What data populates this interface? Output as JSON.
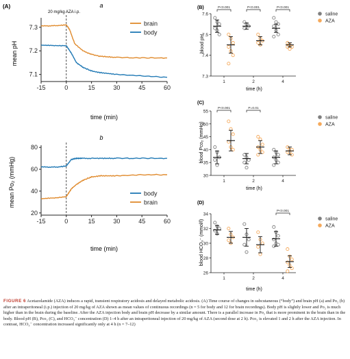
{
  "colors": {
    "brain": "#E08A2C",
    "body": "#1F78B4",
    "saline_face": "#7f7f7f",
    "aza_face": "#F5A95B",
    "sig": "#000000"
  },
  "panels": {
    "A": {
      "label": "(A)",
      "annotation": "20 mg/kg AZA i.p."
    },
    "B": {
      "label": "(B)"
    },
    "C": {
      "label": "(C)"
    },
    "D": {
      "label": "(D)"
    }
  },
  "chart_data": [
    {
      "id": "Aa",
      "type": "line",
      "title": "a",
      "xlabel": "time (min)",
      "ylabel": "mean pH",
      "xlim": [
        -15,
        60
      ],
      "ylim": [
        7.07,
        7.34
      ],
      "xticks": [
        -15,
        0,
        15,
        30,
        45,
        60
      ],
      "yticks": [
        7.1,
        7.2,
        7.3
      ],
      "legend": "top-right",
      "series": [
        {
          "name": "brain",
          "x": [
            -15,
            -5,
            0,
            2,
            5,
            10,
            15,
            20,
            30,
            45,
            60
          ],
          "y": [
            7.305,
            7.307,
            7.31,
            7.29,
            7.23,
            7.2,
            7.185,
            7.177,
            7.172,
            7.17,
            7.17
          ]
        },
        {
          "name": "body",
          "x": [
            -15,
            -5,
            0,
            3,
            6,
            10,
            15,
            20,
            30,
            45,
            60
          ],
          "y": [
            7.224,
            7.222,
            7.222,
            7.19,
            7.15,
            7.13,
            7.115,
            7.108,
            7.1,
            7.094,
            7.088
          ]
        }
      ]
    },
    {
      "id": "Ab",
      "type": "line",
      "title": "b",
      "xlabel": "time (min)",
      "ylabel": "mean Po₂ (mmHg)",
      "xlim": [
        -15,
        60
      ],
      "ylim": [
        18,
        82
      ],
      "xticks": [
        -15,
        0,
        15,
        30,
        45,
        60
      ],
      "yticks": [
        20,
        40,
        60,
        80
      ],
      "legend": "bottom-right",
      "series": [
        {
          "name": "body",
          "x": [
            -15,
            -5,
            0,
            3,
            6,
            10,
            20,
            30,
            45,
            60
          ],
          "y": [
            62,
            62,
            63,
            69,
            70,
            70,
            70,
            70,
            70,
            70
          ]
        },
        {
          "name": "brain",
          "x": [
            -15,
            -5,
            0,
            3,
            6,
            10,
            15,
            20,
            30,
            45,
            60
          ],
          "y": [
            33,
            34,
            35,
            42,
            46,
            50,
            53,
            54,
            54,
            55,
            55
          ]
        }
      ]
    },
    {
      "id": "B",
      "type": "scatter",
      "ylabel": "blood pH",
      "xlabel": "time (h)",
      "categories": [
        "1",
        "2",
        "4"
      ],
      "ylim": [
        7.3,
        7.6
      ],
      "yticks": [
        7.3,
        7.4,
        7.5,
        7.6
      ],
      "legend": "top-right",
      "series": [
        {
          "name": "saline",
          "mean": [
            7.54,
            7.54,
            7.53
          ],
          "sd": [
            0.03,
            0.015,
            0.02
          ],
          "points": [
            [
              7.58,
              7.56,
              7.55,
              7.53,
              7.52,
              7.5
            ],
            [
              7.56,
              7.55,
              7.54,
              7.53
            ],
            [
              7.58,
              7.56,
              7.55,
              7.54,
              7.52,
              7.5,
              7.49
            ]
          ]
        },
        {
          "name": "AZA",
          "mean": [
            7.45,
            7.47,
            7.45
          ],
          "sd": [
            0.04,
            0.02,
            0.01
          ],
          "points": [
            [
              7.5,
              7.48,
              7.46,
              7.44,
              7.42,
              7.4,
              7.36
            ],
            [
              7.5,
              7.48,
              7.47,
              7.46,
              7.45
            ],
            [
              7.46,
              7.45,
              7.44,
              7.44,
              7.43
            ]
          ]
        }
      ],
      "significance": [
        {
          "group": 0,
          "label": "P<0.001"
        },
        {
          "group": 1,
          "label": "P<0.001"
        },
        {
          "group": 2,
          "label": "P<0.001"
        }
      ]
    },
    {
      "id": "C",
      "type": "scatter",
      "ylabel": "blood Pco₂ (mmHg)",
      "xlabel": "time (h)",
      "categories": [
        "1",
        "2",
        "4"
      ],
      "ylim": [
        30,
        55
      ],
      "yticks": [
        30,
        35,
        40,
        45,
        50,
        55
      ],
      "legend": "top-right",
      "series": [
        {
          "name": "saline",
          "mean": [
            37,
            36.5,
            37
          ],
          "sd": [
            2.5,
            2,
            2.5
          ],
          "points": [
            [
              41,
              39,
              37,
              36,
              34
            ],
            [
              38,
              37,
              36,
              35,
              33
            ],
            [
              40,
              39,
              38,
              37,
              36,
              35,
              34
            ]
          ]
        },
        {
          "name": "AZA",
          "mean": [
            43.5,
            41,
            39.5
          ],
          "sd": [
            4,
            2.5,
            1.5
          ],
          "points": [
            [
              51,
              48,
              46,
              43,
              41,
              40
            ],
            [
              45,
              44,
              42,
              41,
              40,
              39,
              38
            ],
            [
              41,
              40,
              40,
              39,
              39,
              38
            ]
          ]
        }
      ],
      "significance": [
        {
          "group": 0,
          "label": "P<0.001"
        },
        {
          "group": 1,
          "label": "P=0.01"
        }
      ]
    },
    {
      "id": "D",
      "type": "scatter",
      "ylabel": "blood HCO₃⁻ (mmol/l)",
      "xlabel": "time (h)",
      "categories": [
        "1",
        "2",
        "4"
      ],
      "ylim": [
        26,
        34
      ],
      "yticks": [
        26,
        28,
        30,
        32,
        34
      ],
      "legend": "top-right",
      "series": [
        {
          "name": "saline",
          "mean": [
            31.8,
            30.8,
            30.6
          ],
          "sd": [
            0.6,
            1.2,
            1
          ],
          "points": [
            [
              32.8,
              32.3,
              32,
              31.7,
              31.3
            ],
            [
              32.6,
              31.2,
              30.5,
              29.8,
              28.8
            ],
            [
              32.2,
              31.5,
              31,
              30.5,
              30,
              29.8,
              29.6
            ]
          ]
        },
        {
          "name": "AZA",
          "mean": [
            30.8,
            29.8,
            27.5
          ],
          "sd": [
            0.8,
            1.1,
            0.8
          ],
          "points": [
            [
              32,
              31.2,
              30.8,
              30.4,
              30
            ],
            [
              31.5,
              30.5,
              30,
              29.5,
              28.5
            ],
            [
              29.2,
              28.2,
              27.8,
              27.4,
              27,
              26.6,
              26.2
            ]
          ]
        }
      ],
      "significance": [
        {
          "group": 2,
          "label": "P<0.001"
        }
      ]
    }
  ],
  "caption": {
    "label": "FIGURE 6",
    "text": "Acetazolamide (AZA) induces a rapid, transient respiratory acidosis and delayed metabolic acidosis. (A) Time course of changes in subcutaneous (“body”) and brain pH (a) and Po₂ (b) after an intraperitoneal (i.p.) injection of 20 mg/kg of AZA shown as mean values of continuous recordings (n = 5 for body and 12 for brain recordings). Body pH is slightly lower and Po₂ is much higher than in the brain during the baseline. After the AZA injection body and brain pH decrease by a similar amount. There is a parallel increase in Po₂ that is more prominent in the brain than in the body. Blood pH (B), Pco₂ (C), and HCO₃⁻ concentration (D) 1–4 h after an intraperitoneal injection of 20 mg/kg of AZA (second dose at 2 h). Pco₂ is elevated 1 and 2 h after the AZA injection. In contrast, HCO₃⁻ concentration increased significantly only at 4 h (n = 7–12)"
  }
}
